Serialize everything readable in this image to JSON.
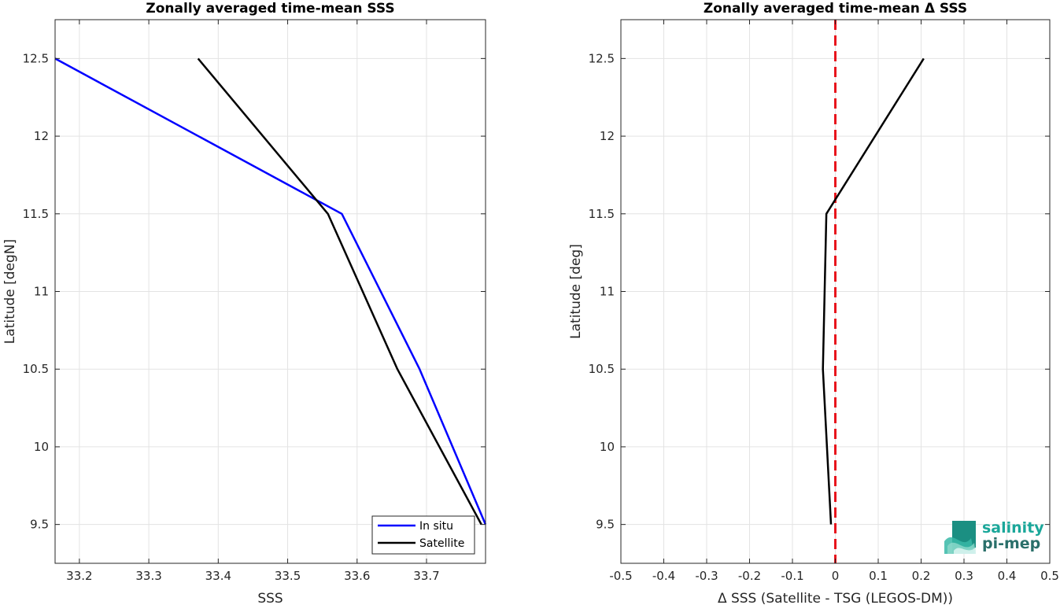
{
  "chart_data": [
    {
      "type": "line",
      "title": "Zonally averaged time-mean SSS",
      "xlabel": "SSS",
      "ylabel": "Latitude [degN]",
      "xlim": [
        33.165,
        33.785
      ],
      "ylim": [
        9.25,
        12.75
      ],
      "xticks": [
        "33.2",
        "33.3",
        "33.4",
        "33.5",
        "33.6",
        "33.7"
      ],
      "xtick_values": [
        33.2,
        33.3,
        33.4,
        33.5,
        33.6,
        33.7
      ],
      "yticks": [
        "9.5",
        "10",
        "10.5",
        "11",
        "11.5",
        "12",
        "12.5"
      ],
      "ytick_values": [
        9.5,
        10,
        10.5,
        11,
        11.5,
        12,
        12.5
      ],
      "grid": true,
      "legend": "bottom-right",
      "series": [
        {
          "name": "In situ",
          "color": "#0000ff",
          "x": [
            33.785,
            33.69,
            33.578,
            33.165
          ],
          "y": [
            9.5,
            10.5,
            11.5,
            12.5
          ]
        },
        {
          "name": "Satellite",
          "color": "#000000",
          "x": [
            33.779,
            33.658,
            33.558,
            33.371
          ],
          "y": [
            9.5,
            10.5,
            11.5,
            12.5
          ]
        }
      ]
    },
    {
      "type": "line",
      "title": "Zonally averaged time-mean Δ SSS",
      "xlabel": "Δ SSS (Satellite - TSG (LEGOS-DM))",
      "ylabel": "Latitude [deg]",
      "xlim": [
        -0.5,
        0.5
      ],
      "ylim": [
        9.25,
        12.75
      ],
      "xticks": [
        "-0.5",
        "-0.4",
        "-0.3",
        "-0.2",
        "-0.1",
        "0",
        "0.1",
        "0.2",
        "0.3",
        "0.4",
        "0.5"
      ],
      "xtick_values": [
        -0.5,
        -0.4,
        -0.3,
        -0.2,
        -0.1,
        0,
        0.1,
        0.2,
        0.3,
        0.4,
        0.5
      ],
      "yticks": [
        "9.5",
        "10",
        "10.5",
        "11",
        "11.5",
        "12",
        "12.5"
      ],
      "ytick_values": [
        9.5,
        10,
        10.5,
        11,
        11.5,
        12,
        12.5
      ],
      "grid": true,
      "reference_line": {
        "x": 0,
        "color": "#e8141c",
        "style": "dashed"
      },
      "series": [
        {
          "color": "#000000",
          "x": [
            -0.01,
            -0.029,
            -0.021,
            0.206
          ],
          "y": [
            9.5,
            10.5,
            11.5,
            12.5
          ]
        }
      ]
    }
  ],
  "logo": {
    "line1": "salinity",
    "line2": "pi-mep",
    "color1": "#1aa79a",
    "color2": "#2a6f6a"
  }
}
